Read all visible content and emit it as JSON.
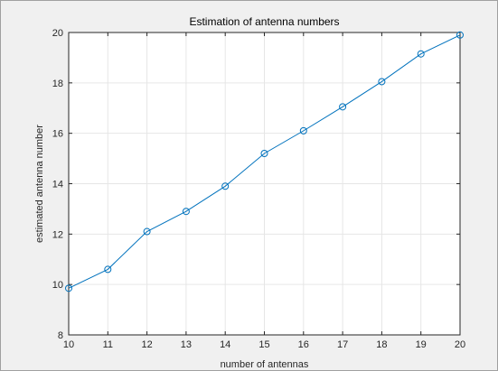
{
  "chart_data": {
    "type": "line",
    "title": "Estimation of antenna numbers",
    "xlabel": "number of antennas",
    "ylabel": "estimated antenna number",
    "xlim": [
      10,
      20
    ],
    "ylim": [
      8,
      20
    ],
    "xticks": [
      10,
      11,
      12,
      13,
      14,
      15,
      16,
      17,
      18,
      19,
      20
    ],
    "yticks": [
      8,
      10,
      12,
      14,
      16,
      18,
      20
    ],
    "grid": true,
    "marker": "circle",
    "series": [
      {
        "color": "#0072BD",
        "x": [
          10,
          11,
          12,
          13,
          14,
          15,
          16,
          17,
          18,
          19,
          20
        ],
        "y": [
          9.85,
          10.6,
          12.1,
          12.9,
          13.9,
          15.2,
          16.1,
          17.05,
          18.05,
          19.15,
          19.9
        ]
      }
    ]
  }
}
